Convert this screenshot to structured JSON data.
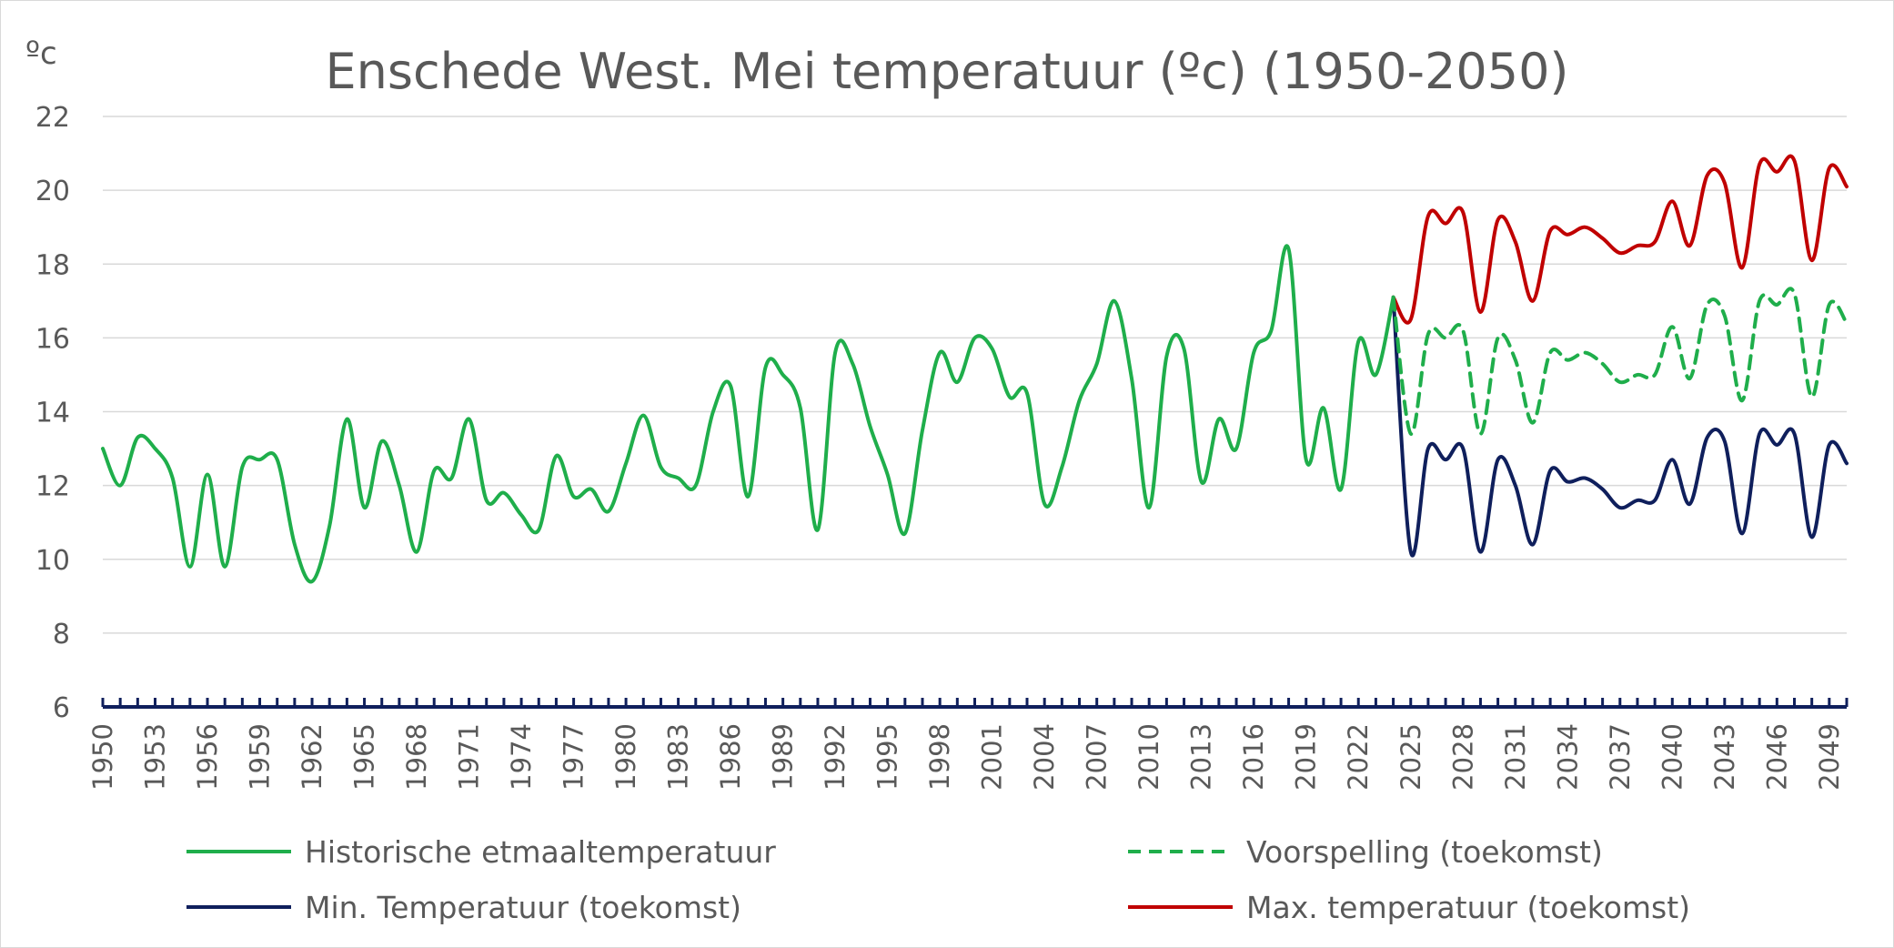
{
  "chart_data": {
    "type": "line",
    "title": "Enschede West. Mei temperatuur (ºc) (1950-2050)",
    "ylabel": "ºc",
    "xlabel": "",
    "ylim": [
      6,
      22
    ],
    "yticks": [
      6,
      8,
      10,
      12,
      14,
      16,
      18,
      20,
      22
    ],
    "xlim": [
      1950,
      2050
    ],
    "xtick_labels": [
      "1950",
      "1953",
      "1956",
      "1959",
      "1962",
      "1965",
      "1968",
      "1971",
      "1974",
      "1977",
      "1980",
      "1983",
      "1986",
      "1989",
      "1992",
      "1995",
      "1998",
      "2001",
      "2004",
      "2007",
      "2010",
      "2013",
      "2016",
      "2019",
      "2022",
      "2025",
      "2028",
      "2031",
      "2034",
      "2037",
      "2040",
      "2043",
      "2046",
      "2049"
    ],
    "grid": true,
    "legend_position": "bottom",
    "series": [
      {
        "name": "Historische etmaaltemperatuur",
        "color": "#1fae4b",
        "dash": "solid",
        "x": [
          1950,
          1951,
          1952,
          1953,
          1954,
          1955,
          1956,
          1957,
          1958,
          1959,
          1960,
          1961,
          1962,
          1963,
          1964,
          1965,
          1966,
          1967,
          1968,
          1969,
          1970,
          1971,
          1972,
          1973,
          1974,
          1975,
          1976,
          1977,
          1978,
          1979,
          1980,
          1981,
          1982,
          1983,
          1984,
          1985,
          1986,
          1987,
          1988,
          1989,
          1990,
          1991,
          1992,
          1993,
          1994,
          1995,
          1996,
          1997,
          1998,
          1999,
          2000,
          2001,
          2002,
          2003,
          2004,
          2005,
          2006,
          2007,
          2008,
          2009,
          2010,
          2011,
          2012,
          2013,
          2014,
          2015,
          2016,
          2017,
          2018,
          2019,
          2020,
          2021,
          2022,
          2023,
          2024
        ],
        "y": [
          13.0,
          12.0,
          13.3,
          13.0,
          12.2,
          9.8,
          12.3,
          9.8,
          12.5,
          12.7,
          12.7,
          10.4,
          9.4,
          10.9,
          13.8,
          11.4,
          13.2,
          12.0,
          10.2,
          12.4,
          12.2,
          13.8,
          11.6,
          11.8,
          11.2,
          10.8,
          12.8,
          11.7,
          11.9,
          11.3,
          12.6,
          13.9,
          12.5,
          12.2,
          12.0,
          14.0,
          14.7,
          11.7,
          15.2,
          15.0,
          14.1,
          10.8,
          15.6,
          15.3,
          13.6,
          12.3,
          10.7,
          13.5,
          15.6,
          14.8,
          16.0,
          15.7,
          14.4,
          14.5,
          11.5,
          12.5,
          14.3,
          15.3,
          17.0,
          14.9,
          11.4,
          15.5,
          15.7,
          12.1,
          13.8,
          13.0,
          15.6,
          16.2,
          18.4,
          12.7,
          14.1,
          11.9,
          15.9,
          15.0,
          17.1
        ]
      },
      {
        "name": "Voorspelling (toekomst)",
        "color": "#1fae4b",
        "dash": "dashed",
        "x": [
          2024,
          2025,
          2026,
          2027,
          2028,
          2029,
          2030,
          2031,
          2032,
          2033,
          2034,
          2035,
          2036,
          2037,
          2038,
          2039,
          2040,
          2041,
          2042,
          2043,
          2044,
          2045,
          2046,
          2047,
          2048,
          2049,
          2050
        ],
        "y": [
          17.1,
          13.4,
          16.1,
          16.0,
          16.2,
          13.4,
          16.0,
          15.4,
          13.7,
          15.6,
          15.4,
          15.6,
          15.3,
          14.8,
          15.0,
          15.0,
          16.3,
          14.9,
          16.9,
          16.6,
          14.3,
          17.0,
          16.9,
          17.2,
          14.4,
          16.9,
          16.4
        ]
      },
      {
        "name": "Min. Temperatuur (toekomst)",
        "color": "#0f1f5c",
        "dash": "solid",
        "x": [
          2024,
          2025,
          2026,
          2027,
          2028,
          2029,
          2030,
          2031,
          2032,
          2033,
          2034,
          2035,
          2036,
          2037,
          2038,
          2039,
          2040,
          2041,
          2042,
          2043,
          2044,
          2045,
          2046,
          2047,
          2048,
          2049,
          2050
        ],
        "y": [
          17.1,
          10.2,
          13.0,
          12.7,
          13.0,
          10.2,
          12.7,
          12.0,
          10.4,
          12.4,
          12.1,
          12.2,
          11.9,
          11.4,
          11.6,
          11.6,
          12.7,
          11.5,
          13.3,
          13.2,
          10.7,
          13.4,
          13.1,
          13.4,
          10.6,
          13.1,
          12.6
        ]
      },
      {
        "name": "Max. temperatuur (toekomst)",
        "color": "#c00000",
        "dash": "solid",
        "x": [
          2024,
          2025,
          2026,
          2027,
          2028,
          2029,
          2030,
          2031,
          2032,
          2033,
          2034,
          2035,
          2036,
          2037,
          2038,
          2039,
          2040,
          2041,
          2042,
          2043,
          2044,
          2045,
          2046,
          2047,
          2048,
          2049,
          2050
        ],
        "y": [
          17.1,
          16.5,
          19.3,
          19.1,
          19.4,
          16.7,
          19.2,
          18.6,
          17.0,
          18.9,
          18.8,
          19.0,
          18.7,
          18.3,
          18.5,
          18.6,
          19.7,
          18.5,
          20.4,
          20.2,
          17.9,
          20.7,
          20.5,
          20.8,
          18.1,
          20.6,
          20.1
        ]
      }
    ]
  }
}
